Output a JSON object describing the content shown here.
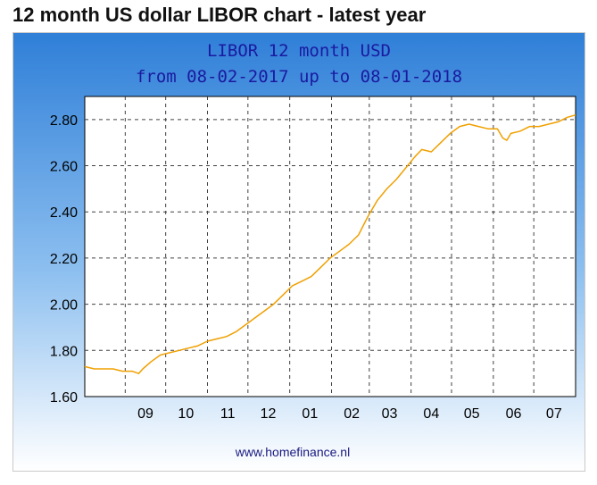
{
  "page_title": "12 month US dollar LIBOR chart - latest year",
  "colors": {
    "bg_top": "#2f7fd8",
    "bg_bottom": "#ffffff",
    "title_text": "#1a1aa0",
    "line": "#f0a000",
    "grid": "#404040",
    "footer_text": "#1a1a80"
  },
  "chart_data": {
    "type": "line",
    "title": "LIBOR 12 month USD",
    "subtitle": "from 08-02-2017 up to 08-01-2018",
    "source": "www.homefinance.nl",
    "grid": true,
    "ylim": [
      1.6,
      2.9
    ],
    "yticks": [
      {
        "value": 1.6,
        "label": "1.60"
      },
      {
        "value": 1.8,
        "label": "1.80"
      },
      {
        "value": 2.0,
        "label": "2.00"
      },
      {
        "value": 2.2,
        "label": "2.20"
      },
      {
        "value": 2.4,
        "label": "2.40"
      },
      {
        "value": 2.6,
        "label": "2.60"
      },
      {
        "value": 2.8,
        "label": "2.80"
      }
    ],
    "xlim": [
      "2017-08-02",
      "2018-08-01"
    ],
    "xticks": [
      {
        "date": "2017-09-01",
        "label": "09"
      },
      {
        "date": "2017-10-01",
        "label": "10"
      },
      {
        "date": "2017-11-01",
        "label": "11"
      },
      {
        "date": "2017-12-01",
        "label": "12"
      },
      {
        "date": "2018-01-01",
        "label": "01"
      },
      {
        "date": "2018-02-01",
        "label": "02"
      },
      {
        "date": "2018-03-01",
        "label": "03"
      },
      {
        "date": "2018-04-01",
        "label": "04"
      },
      {
        "date": "2018-05-01",
        "label": "05"
      },
      {
        "date": "2018-06-01",
        "label": "06"
      },
      {
        "date": "2018-07-01",
        "label": "07"
      }
    ],
    "series": [
      {
        "points": [
          [
            "2017-08-02",
            1.73
          ],
          [
            "2017-08-09",
            1.72
          ],
          [
            "2017-08-16",
            1.72
          ],
          [
            "2017-08-23",
            1.72
          ],
          [
            "2017-08-30",
            1.71
          ],
          [
            "2017-09-06",
            1.71
          ],
          [
            "2017-09-11",
            1.7
          ],
          [
            "2017-09-14",
            1.72
          ],
          [
            "2017-09-20",
            1.75
          ],
          [
            "2017-09-27",
            1.78
          ],
          [
            "2017-10-04",
            1.79
          ],
          [
            "2017-10-11",
            1.8
          ],
          [
            "2017-10-18",
            1.81
          ],
          [
            "2017-10-25",
            1.82
          ],
          [
            "2017-11-01",
            1.84
          ],
          [
            "2017-11-08",
            1.85
          ],
          [
            "2017-11-15",
            1.86
          ],
          [
            "2017-11-22",
            1.88
          ],
          [
            "2017-11-29",
            1.91
          ],
          [
            "2017-12-06",
            1.94
          ],
          [
            "2017-12-13",
            1.97
          ],
          [
            "2017-12-20",
            2.0
          ],
          [
            "2017-12-27",
            2.04
          ],
          [
            "2018-01-03",
            2.08
          ],
          [
            "2018-01-10",
            2.1
          ],
          [
            "2018-01-17",
            2.12
          ],
          [
            "2018-01-24",
            2.16
          ],
          [
            "2018-01-31",
            2.2
          ],
          [
            "2018-02-07",
            2.23
          ],
          [
            "2018-02-14",
            2.26
          ],
          [
            "2018-02-21",
            2.3
          ],
          [
            "2018-02-28",
            2.38
          ],
          [
            "2018-03-07",
            2.45
          ],
          [
            "2018-03-14",
            2.5
          ],
          [
            "2018-03-21",
            2.54
          ],
          [
            "2018-03-28",
            2.59
          ],
          [
            "2018-04-04",
            2.64
          ],
          [
            "2018-04-09",
            2.67
          ],
          [
            "2018-04-16",
            2.66
          ],
          [
            "2018-04-23",
            2.7
          ],
          [
            "2018-04-30",
            2.74
          ],
          [
            "2018-05-07",
            2.77
          ],
          [
            "2018-05-14",
            2.78
          ],
          [
            "2018-05-21",
            2.77
          ],
          [
            "2018-05-28",
            2.76
          ],
          [
            "2018-06-04",
            2.76
          ],
          [
            "2018-06-08",
            2.72
          ],
          [
            "2018-06-11",
            2.71
          ],
          [
            "2018-06-14",
            2.74
          ],
          [
            "2018-06-21",
            2.75
          ],
          [
            "2018-06-28",
            2.77
          ],
          [
            "2018-07-05",
            2.77
          ],
          [
            "2018-07-12",
            2.78
          ],
          [
            "2018-07-19",
            2.79
          ],
          [
            "2018-07-26",
            2.81
          ],
          [
            "2018-08-01",
            2.82
          ]
        ]
      }
    ]
  }
}
